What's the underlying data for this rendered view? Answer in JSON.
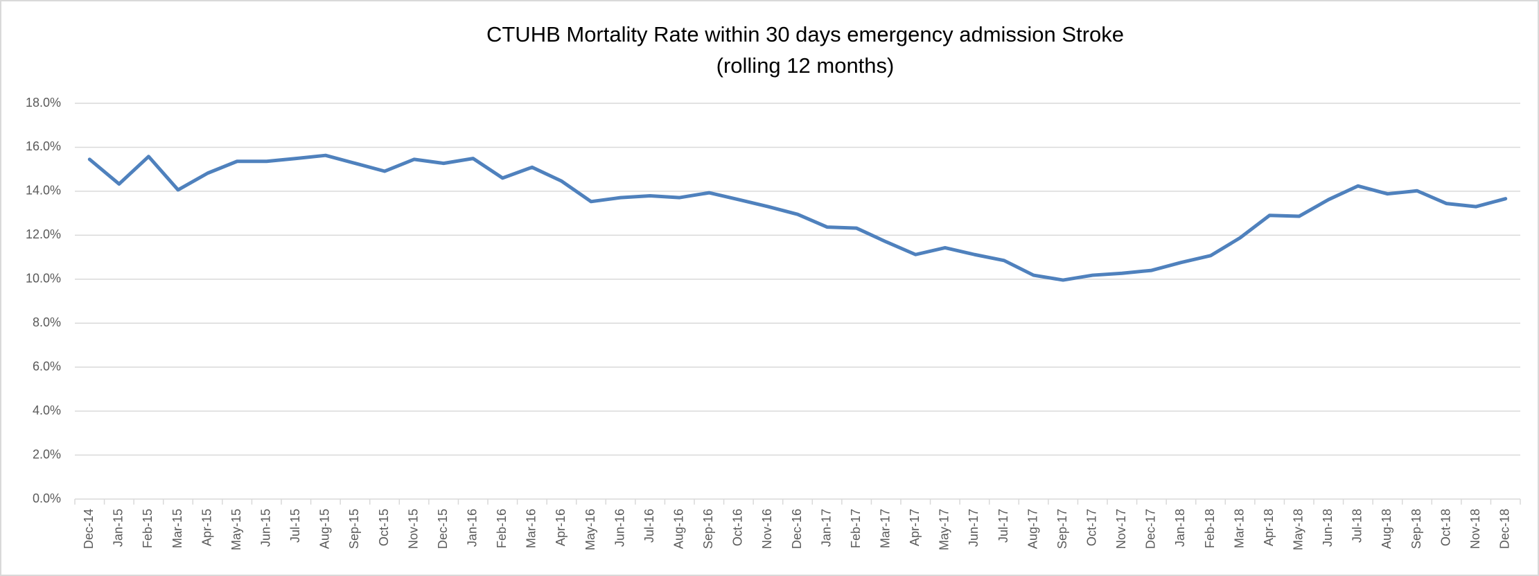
{
  "chart_data": {
    "type": "line",
    "title": "CTUHB Mortality Rate within 30 days emergency admission Stroke",
    "subtitle": "(rolling 12 months)",
    "categories": [
      "Dec-14",
      "Jan-15",
      "Feb-15",
      "Mar-15",
      "Apr-15",
      "May-15",
      "Jun-15",
      "Jul-15",
      "Aug-15",
      "Sep-15",
      "Oct-15",
      "Nov-15",
      "Dec-15",
      "Jan-16",
      "Feb-16",
      "Mar-16",
      "Apr-16",
      "May-16",
      "Jun-16",
      "Jul-16",
      "Aug-16",
      "Sep-16",
      "Oct-16",
      "Nov-16",
      "Dec-16",
      "Jan-17",
      "Feb-17",
      "Mar-17",
      "Apr-17",
      "May-17",
      "Jun-17",
      "Jul-17",
      "Aug-17",
      "Sep-17",
      "Oct-17",
      "Nov-17",
      "Dec-17",
      "Jan-18",
      "Feb-18",
      "Mar-18",
      "Apr-18",
      "May-18",
      "Jun-18",
      "Jul-18",
      "Aug-18",
      "Sep-18",
      "Oct-18",
      "Nov-18",
      "Dec-18"
    ],
    "series": [
      {
        "name": "Mortality Rate",
        "color": "#4f81bd",
        "values": [
          15.45,
          14.33,
          15.58,
          14.06,
          14.82,
          15.36,
          15.36,
          15.49,
          15.63,
          15.27,
          14.91,
          15.45,
          15.27,
          15.49,
          14.6,
          15.09,
          14.46,
          13.53,
          13.71,
          13.79,
          13.71,
          13.93,
          13.62,
          13.3,
          12.95,
          12.37,
          12.32,
          11.7,
          11.12,
          11.43,
          11.12,
          10.85,
          10.18,
          9.96,
          10.18,
          10.27,
          10.4,
          10.76,
          11.07,
          11.88,
          12.9,
          12.86,
          13.62,
          14.24,
          13.88,
          14.02,
          13.44,
          13.3,
          13.66
        ]
      }
    ],
    "ylim": [
      0,
      18
    ],
    "yticks": [
      {
        "value": 0,
        "label": "0.0%"
      },
      {
        "value": 2,
        "label": "2.0%"
      },
      {
        "value": 4,
        "label": "4.0%"
      },
      {
        "value": 6,
        "label": "6.0%"
      },
      {
        "value": 8,
        "label": "8.0%"
      },
      {
        "value": 10,
        "label": "10.0%"
      },
      {
        "value": 12,
        "label": "12.0%"
      },
      {
        "value": 14,
        "label": "14.0%"
      },
      {
        "value": 16,
        "label": "16.0%"
      },
      {
        "value": 18,
        "label": "18.0%"
      }
    ],
    "grid": true
  }
}
